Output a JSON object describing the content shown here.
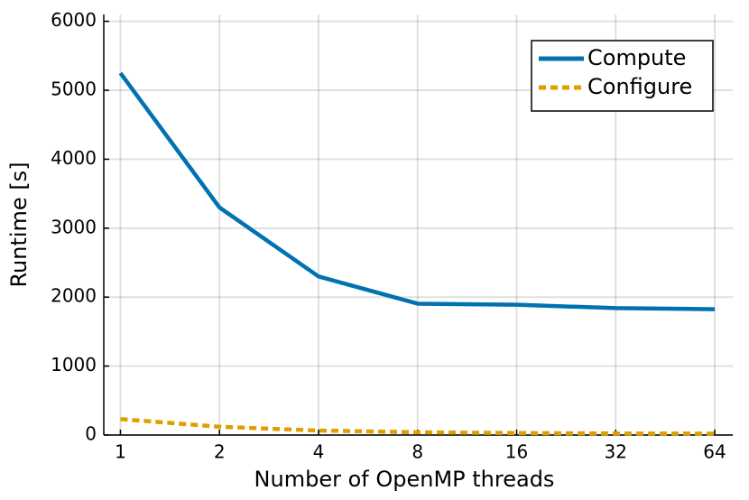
{
  "chart_data": {
    "type": "line",
    "xlabel": "Number of OpenMP threads",
    "ylabel": "Runtime [s]",
    "x": [
      1,
      2,
      4,
      8,
      16,
      32,
      64
    ],
    "xscale": "log",
    "xlim": [
      0.89,
      72.6
    ],
    "xticks": [
      1,
      2,
      4,
      8,
      16,
      32,
      64
    ],
    "ylim": [
      0,
      6100
    ],
    "yticks": [
      0,
      1000,
      2000,
      3000,
      4000,
      5000,
      6000
    ],
    "grid": true,
    "legend": "upper right",
    "series": [
      {
        "name": "Compute",
        "color": "#0072b2",
        "dash": "solid",
        "values": [
          5250,
          3300,
          2300,
          1905,
          1890,
          1840,
          1825
        ]
      },
      {
        "name": "Configure",
        "color": "#e09f00",
        "dash": "dashed",
        "values": [
          230,
          120,
          65,
          40,
          28,
          22,
          20
        ]
      }
    ]
  }
}
